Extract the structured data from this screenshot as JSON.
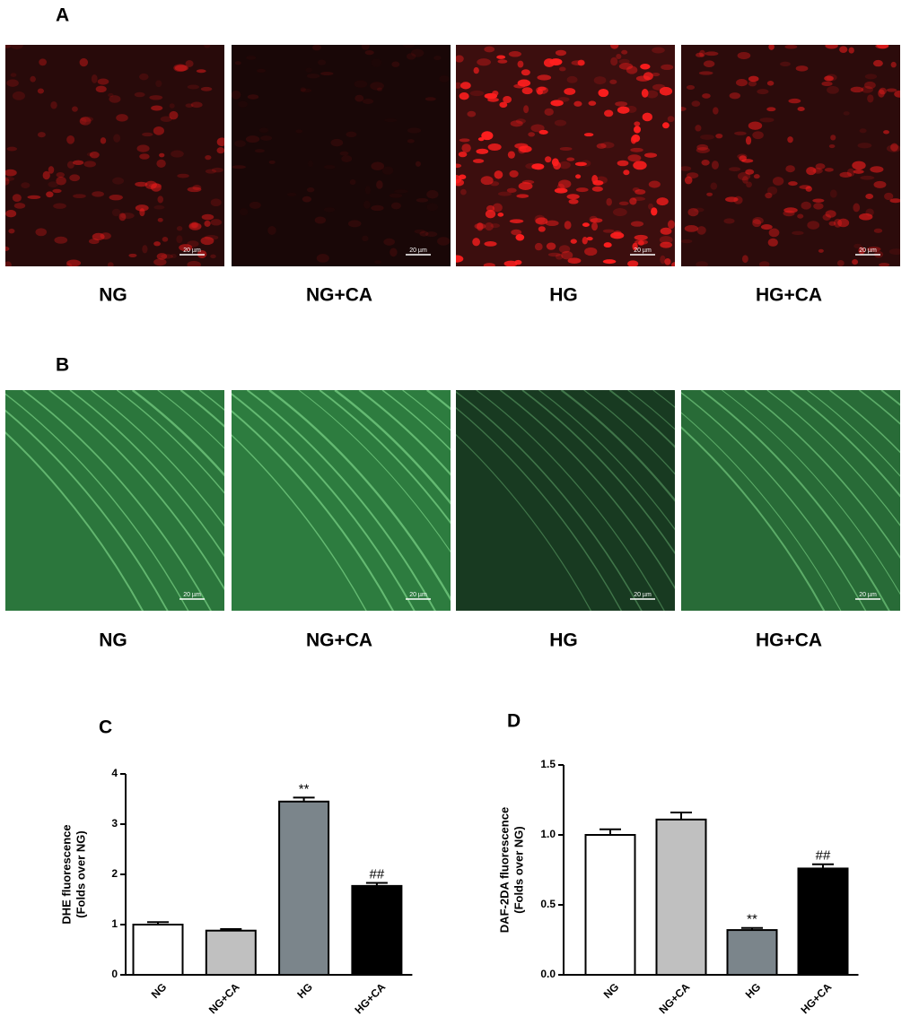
{
  "panel_a": {
    "label": "A",
    "images": [
      {
        "label": "NG",
        "scale": "20 µm"
      },
      {
        "label": "NG+CA",
        "scale": "20 µm"
      },
      {
        "label": "HG",
        "scale": "20 µm"
      },
      {
        "label": "HG+CA",
        "scale": "20 µm"
      }
    ]
  },
  "panel_b": {
    "label": "B",
    "images": [
      {
        "label": "NG",
        "scale": "20 µm"
      },
      {
        "label": "NG+CA",
        "scale": "20 µm"
      },
      {
        "label": "HG",
        "scale": "20 µm"
      },
      {
        "label": "HG+CA",
        "scale": "20 µm"
      }
    ]
  },
  "chart_data": [
    {
      "type": "bar",
      "panel": "C",
      "ylabel": [
        "DHE fluorescence",
        "(Folds over NG)"
      ],
      "categories": [
        "NG",
        "NG+CA",
        "HG",
        "HG+CA"
      ],
      "values": [
        1.0,
        0.88,
        3.45,
        1.77
      ],
      "errors": [
        0.05,
        0.03,
        0.08,
        0.06
      ],
      "colors": [
        "#ffffff",
        "#c0c0c0",
        "#7b858b",
        "#000000"
      ],
      "annotations": [
        null,
        null,
        "**",
        "##"
      ],
      "ylim": [
        0,
        4
      ],
      "yticks": [
        0,
        1,
        2,
        3,
        4
      ]
    },
    {
      "type": "bar",
      "panel": "D",
      "ylabel": [
        "DAF-2DA fluorescence",
        "(Folds over NG)"
      ],
      "categories": [
        "NG",
        "NG+CA",
        "HG",
        "HG+CA"
      ],
      "values": [
        1.0,
        1.11,
        0.32,
        0.76
      ],
      "errors": [
        0.04,
        0.05,
        0.015,
        0.03
      ],
      "colors": [
        "#ffffff",
        "#c0c0c0",
        "#7b858b",
        "#000000"
      ],
      "annotations": [
        null,
        null,
        "**",
        "##"
      ],
      "ylim": [
        0,
        1.5
      ],
      "yticks": [
        {
          "value": 0,
          "label": "0.0"
        },
        0.5,
        {
          "value": 1,
          "label": "1.0"
        },
        1.5
      ]
    }
  ]
}
